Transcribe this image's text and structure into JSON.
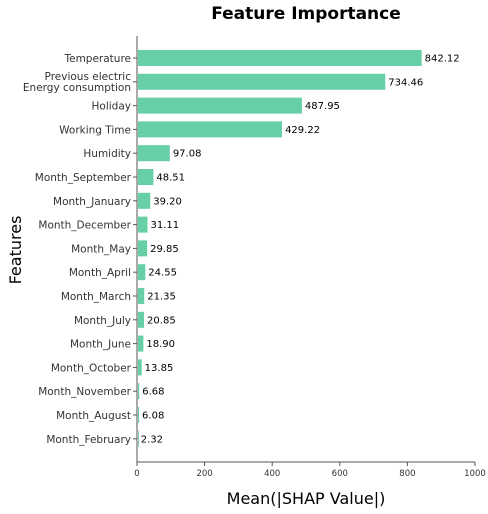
{
  "chart_data": {
    "type": "bar",
    "orientation": "horizontal",
    "title": "Feature Importance",
    "xlabel": "Mean(|SHAP Value|)",
    "ylabel": "Features",
    "xlim": [
      0,
      1000
    ],
    "xticks": [
      0,
      200,
      400,
      600,
      800,
      1000
    ],
    "categories": [
      [
        "Temperature"
      ],
      [
        "Previous electric",
        "Energy consumption"
      ],
      [
        "Holiday"
      ],
      [
        "Working Time"
      ],
      [
        "Humidity"
      ],
      [
        "Month_September"
      ],
      [
        "Month_January"
      ],
      [
        "Month_December"
      ],
      [
        "Month_May"
      ],
      [
        "Month_April"
      ],
      [
        "Month_March"
      ],
      [
        "Month_July"
      ],
      [
        "Month_June"
      ],
      [
        "Month_October"
      ],
      [
        "Month_November"
      ],
      [
        "Month_August"
      ],
      [
        "Month_February"
      ]
    ],
    "values": [
      842.12,
      734.46,
      487.95,
      429.22,
      97.08,
      48.51,
      39.2,
      31.11,
      29.85,
      24.55,
      21.35,
      20.85,
      18.9,
      13.85,
      6.68,
      6.08,
      2.32
    ],
    "value_labels": [
      "842.12",
      "734.46",
      "487.95",
      "429.22",
      "97.08",
      "48.51",
      "39.20",
      "31.11",
      "29.85",
      "24.55",
      "21.35",
      "20.85",
      "18.90",
      "13.85",
      "6.68",
      "6.08",
      "2.32"
    ],
    "bar_color": "#66cfa6",
    "grid": false
  }
}
